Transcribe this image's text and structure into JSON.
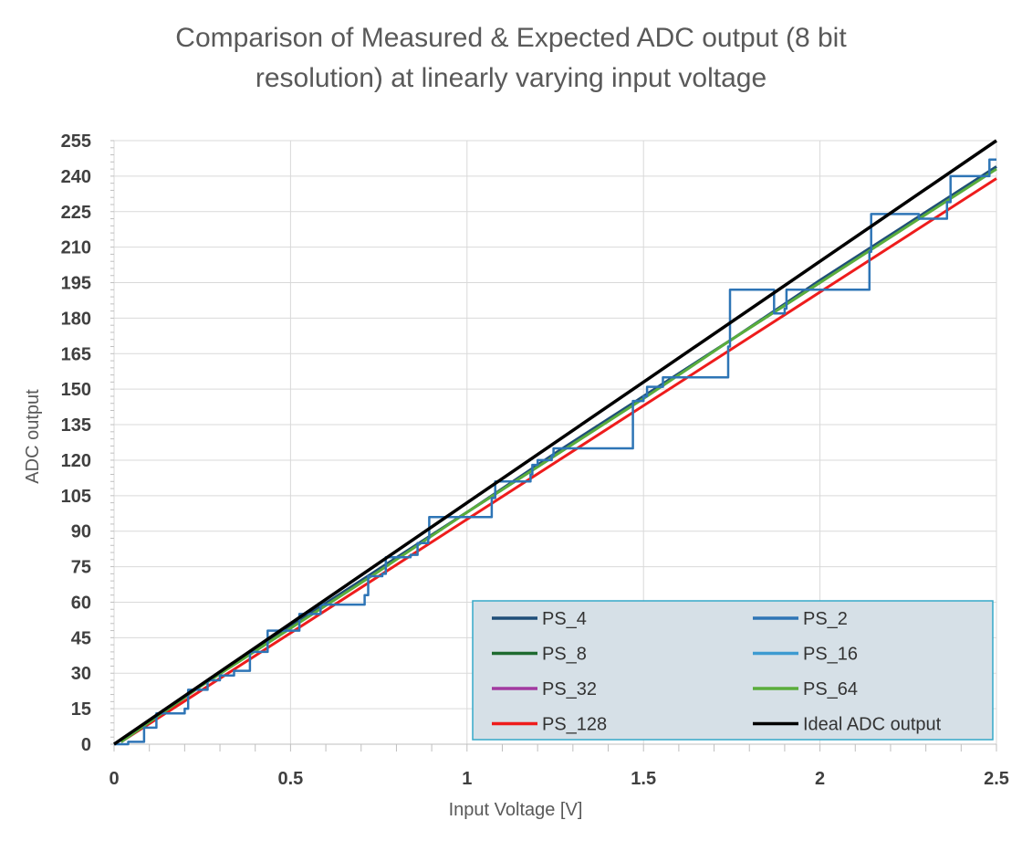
{
  "chart_data": {
    "type": "line",
    "title": "Comparison of Measured & Expected ADC output (8 bit resolution) at linearly varying input voltage",
    "title_lines": [
      "Comparison of Measured & Expected ADC output (8 bit",
      "resolution) at linearly varying input voltage"
    ],
    "xlabel": "Input Voltage [V]",
    "ylabel": "ADC output",
    "xlim": [
      0,
      2.5
    ],
    "ylim": [
      0,
      255
    ],
    "x_ticks": [
      "0",
      "0.5",
      "1",
      "1.5",
      "2",
      "2.5"
    ],
    "x_tick_values": [
      0,
      0.5,
      1,
      1.5,
      2,
      2.5
    ],
    "y_ticks": [
      "0",
      "15",
      "30",
      "45",
      "60",
      "75",
      "90",
      "105",
      "120",
      "135",
      "150",
      "165",
      "180",
      "195",
      "210",
      "225",
      "240",
      "255"
    ],
    "y_tick_values": [
      0,
      15,
      30,
      45,
      60,
      75,
      90,
      105,
      120,
      135,
      150,
      165,
      180,
      195,
      210,
      225,
      240,
      255
    ],
    "grid": true,
    "legend_position": "bottom-right",
    "series": [
      {
        "name": "PS_4",
        "color": "#1f4e79",
        "width": 3,
        "x": [
          0.02,
          0.25,
          0.5,
          0.75,
          1.0,
          1.25,
          1.5,
          1.75,
          2.0,
          2.25,
          2.5
        ],
        "y": [
          1,
          25,
          50,
          74,
          98,
          123,
          147,
          171,
          196,
          220,
          244
        ]
      },
      {
        "name": "PS_2",
        "color": "#2e75b6",
        "width": 2.5,
        "steps": [
          [
            0.0,
            0
          ],
          [
            0.04,
            1
          ],
          [
            0.085,
            7
          ],
          [
            0.12,
            13
          ],
          [
            0.2,
            15
          ],
          [
            0.21,
            23
          ],
          [
            0.26,
            23
          ],
          [
            0.265,
            27
          ],
          [
            0.3,
            29
          ],
          [
            0.34,
            31
          ],
          [
            0.38,
            31
          ],
          [
            0.385,
            39
          ],
          [
            0.43,
            39
          ],
          [
            0.435,
            48
          ],
          [
            0.52,
            48
          ],
          [
            0.525,
            55
          ],
          [
            0.58,
            55
          ],
          [
            0.585,
            59
          ],
          [
            0.71,
            63
          ],
          [
            0.72,
            71
          ],
          [
            0.76,
            72
          ],
          [
            0.77,
            79
          ],
          [
            0.84,
            80
          ],
          [
            0.86,
            85
          ],
          [
            0.89,
            87
          ],
          [
            0.893,
            96
          ],
          [
            0.96,
            96
          ],
          [
            1.07,
            104
          ],
          [
            1.08,
            111
          ],
          [
            1.13,
            111
          ],
          [
            1.18,
            114
          ],
          [
            1.185,
            118
          ],
          [
            1.2,
            120
          ],
          [
            1.24,
            122
          ],
          [
            1.245,
            125
          ],
          [
            1.47,
            145
          ],
          [
            1.5,
            147
          ],
          [
            1.51,
            151
          ],
          [
            1.55,
            151
          ],
          [
            1.555,
            155
          ],
          [
            1.74,
            168
          ],
          [
            1.745,
            192
          ],
          [
            1.87,
            192
          ],
          [
            1.87,
            182
          ],
          [
            1.9,
            184
          ],
          [
            1.905,
            192
          ],
          [
            1.91,
            192
          ],
          [
            2.14,
            208
          ],
          [
            2.145,
            224
          ],
          [
            2.28,
            224
          ],
          [
            2.28,
            222
          ],
          [
            2.36,
            229
          ],
          [
            2.37,
            240
          ],
          [
            2.47,
            240
          ],
          [
            2.48,
            247
          ],
          [
            2.5,
            247
          ]
        ]
      },
      {
        "name": "PS_8",
        "color": "#1e6b2f",
        "width": 3,
        "x": [
          0.02,
          0.25,
          0.5,
          0.75,
          1.0,
          1.25,
          1.5,
          1.75,
          2.0,
          2.25,
          2.5
        ],
        "y": [
          1,
          25,
          49,
          74,
          98,
          122,
          147,
          171,
          195,
          220,
          244
        ]
      },
      {
        "name": "PS_16",
        "color": "#3d9bd1",
        "width": 2,
        "x": [
          0.02,
          0.25,
          0.5,
          0.75,
          1.0,
          1.25,
          1.5,
          1.75,
          2.0,
          2.25,
          2.5
        ],
        "y": [
          1,
          25,
          49,
          73,
          98,
          122,
          146,
          171,
          195,
          219,
          243
        ]
      },
      {
        "name": "PS_32",
        "color": "#a23aa0",
        "width": 2,
        "x": [
          0.02,
          0.25,
          0.5,
          0.75,
          1.0,
          1.25,
          1.5,
          1.75,
          2.0,
          2.25,
          2.5
        ],
        "y": [
          1,
          25,
          49,
          73,
          98,
          122,
          146,
          171,
          195,
          219,
          243
        ]
      },
      {
        "name": "PS_64",
        "color": "#5aad3c",
        "width": 3,
        "x": [
          0.02,
          0.25,
          0.5,
          0.75,
          1.0,
          1.25,
          1.5,
          1.75,
          2.0,
          2.25,
          2.5
        ],
        "y": [
          1,
          25,
          49,
          73,
          98,
          122,
          146,
          171,
          195,
          219,
          243
        ]
      },
      {
        "name": "PS_128",
        "color": "#ee1c1c",
        "width": 3,
        "x": [
          0.02,
          0.25,
          0.5,
          0.75,
          1.0,
          1.25,
          1.5,
          1.75,
          2.0,
          2.25,
          2.5
        ],
        "y": [
          1,
          23,
          47,
          71,
          95,
          119,
          143,
          167,
          191,
          215,
          239
        ]
      },
      {
        "name": "Ideal ADC output",
        "color": "#000000",
        "width": 3.5,
        "x": [
          0.0,
          0.5,
          1.0,
          1.5,
          2.0,
          2.5
        ],
        "y": [
          0,
          51,
          102,
          153,
          204,
          255
        ]
      }
    ]
  }
}
